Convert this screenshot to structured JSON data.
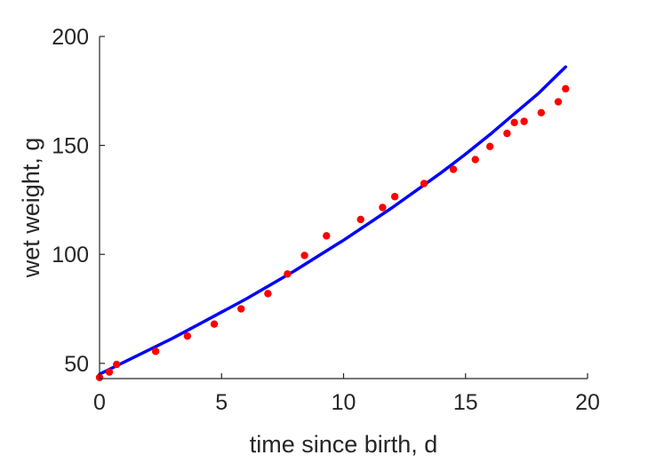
{
  "chart_data": {
    "type": "scatter",
    "xlabel": "time since birth, d",
    "ylabel": "wet weight, g",
    "xlim": [
      0,
      20
    ],
    "ylim": [
      43,
      200
    ],
    "xticks": [
      0,
      5,
      10,
      15,
      20
    ],
    "yticks": [
      50,
      100,
      150,
      200
    ],
    "grid": false,
    "box": false,
    "series": [
      {
        "kind": "points",
        "color": "#ff0000",
        "x": [
          0.0,
          0.4,
          0.7,
          2.3,
          3.6,
          4.7,
          5.8,
          6.9,
          7.7,
          8.4,
          9.3,
          10.7,
          11.6,
          12.1,
          13.3,
          14.5,
          15.4,
          16.0,
          16.7,
          17.0,
          17.4,
          18.1,
          18.8,
          19.1
        ],
        "y": [
          43.5,
          46,
          49.5,
          55.5,
          62.5,
          68,
          75,
          82,
          91,
          99.5,
          108.5,
          116,
          121.5,
          126.5,
          132.5,
          139,
          143.5,
          149.5,
          155.5,
          160.5,
          161,
          165,
          170,
          176
        ]
      },
      {
        "kind": "line",
        "color": "#0000ff",
        "x": [
          0,
          1,
          2,
          3,
          4,
          5,
          6,
          7,
          8,
          9,
          10,
          11,
          12,
          13,
          14,
          15,
          16,
          17,
          18,
          19.1
        ],
        "y": [
          45,
          50.5,
          56,
          61.5,
          67.5,
          73.5,
          79.5,
          86,
          92.5,
          99.5,
          106.5,
          114,
          121.5,
          129.5,
          137.5,
          146,
          155,
          164.5,
          174,
          186
        ]
      }
    ]
  }
}
